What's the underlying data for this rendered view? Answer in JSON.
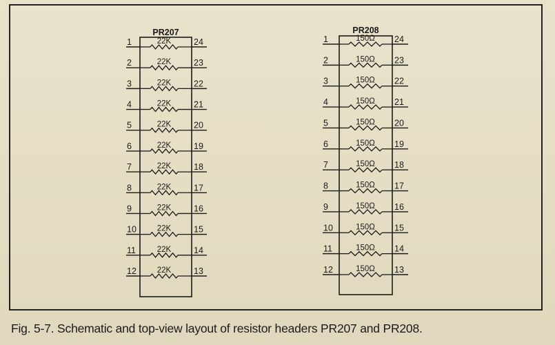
{
  "caption": "Fig. 5-7. Schematic and top-view layout of resistor headers PR207 and PR208.",
  "headers": [
    {
      "name": "PR207",
      "left_pins": [
        "1",
        "2",
        "3",
        "4",
        "5",
        "6",
        "7",
        "8",
        "9",
        "10",
        "11",
        "12"
      ],
      "right_pins": [
        "24",
        "23",
        "22",
        "21",
        "20",
        "19",
        "18",
        "17",
        "16",
        "15",
        "14",
        "13"
      ],
      "resistor_values": [
        "22K",
        "22K",
        "22K",
        "22K",
        "22K",
        "22K",
        "22K",
        "22K",
        "22K",
        "22K",
        "22K",
        "22K"
      ]
    },
    {
      "name": "PR208",
      "left_pins": [
        "1",
        "2",
        "3",
        "4",
        "5",
        "6",
        "7",
        "8",
        "9",
        "10",
        "11",
        "12"
      ],
      "right_pins": [
        "24",
        "23",
        "22",
        "21",
        "20",
        "19",
        "18",
        "17",
        "16",
        "15",
        "14",
        "13"
      ],
      "resistor_values": [
        "150Ω",
        "150Ω",
        "150Ω",
        "150Ω",
        "150Ω",
        "150Ω",
        "150Ω",
        "150Ω",
        "150Ω",
        "150Ω",
        "150Ω",
        "150Ω"
      ]
    }
  ]
}
